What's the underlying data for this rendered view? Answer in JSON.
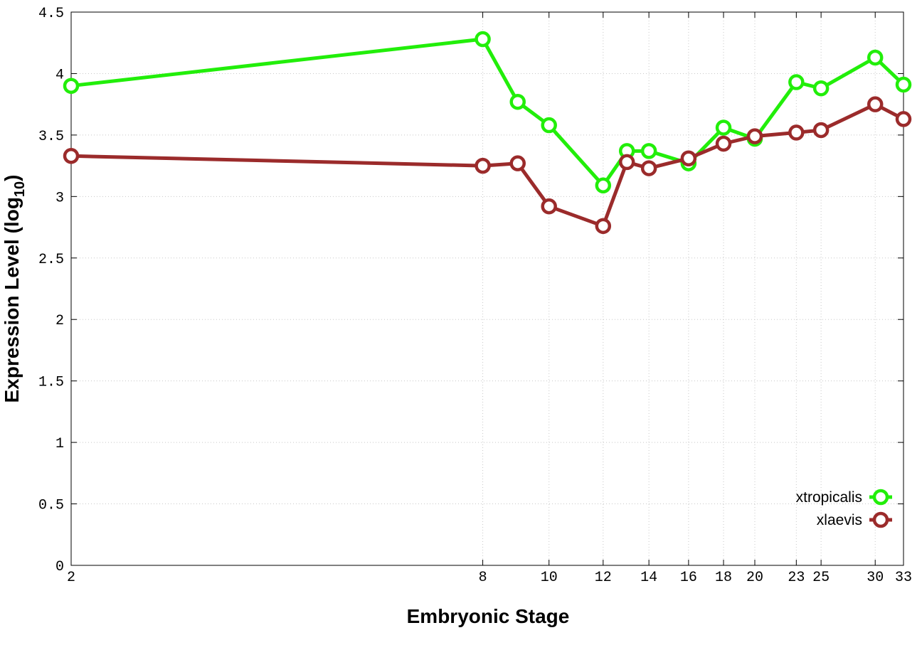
{
  "chart_data": {
    "type": "line",
    "xlabel": "Embryonic Stage",
    "ylabel": "Expression Level (log",
    "ylabel_subscript": "10",
    "ylabel_suffix": ")",
    "x_scale": "log",
    "xlim": [
      2,
      33
    ],
    "ylim": [
      0,
      4.5
    ],
    "x_ticks": [
      2,
      8,
      10,
      12,
      14,
      16,
      18,
      20,
      23,
      25,
      30,
      33
    ],
    "y_ticks": [
      0,
      0.5,
      1,
      1.5,
      2,
      2.5,
      3,
      3.5,
      4,
      4.5
    ],
    "y_tick_labels": [
      "0",
      "0.5",
      "1",
      "1.5",
      "2",
      "2.5",
      "3",
      "3.5",
      "4",
      "4.5"
    ],
    "x": [
      2,
      8,
      9,
      10,
      12,
      13,
      14,
      16,
      18,
      20,
      23,
      25,
      30,
      33
    ],
    "grid": true,
    "legend_position": "bottom-right",
    "series": [
      {
        "name": "xtropicalis",
        "color": "#22ee0a",
        "values": [
          3.9,
          4.28,
          3.77,
          3.58,
          3.09,
          3.37,
          3.37,
          3.27,
          3.56,
          3.47,
          3.93,
          3.88,
          4.13,
          3.91
        ]
      },
      {
        "name": "xlaevis",
        "color": "#9b2b2b",
        "values": [
          3.33,
          3.25,
          3.27,
          2.92,
          2.76,
          3.28,
          3.23,
          3.31,
          3.43,
          3.49,
          3.52,
          3.54,
          3.75,
          3.63
        ]
      }
    ]
  }
}
